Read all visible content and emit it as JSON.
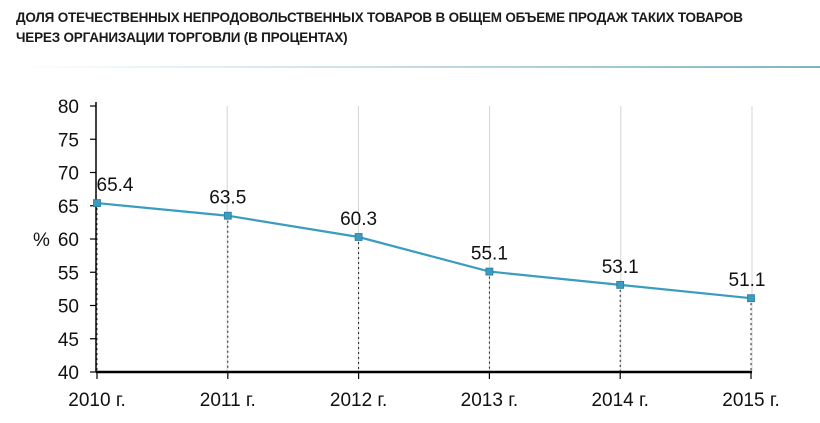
{
  "title": {
    "line1": "ДОЛЯ ОТЕЧЕСТВЕННЫХ НЕПРОДОВОЛЬСТВЕННЫХ ТОВАРОВ В ОБЩЕМ ОБЪЕМЕ ПРОДАЖ ТАКИХ ТОВАРОВ",
    "line2": "ЧЕРЕЗ ОРГАНИЗАЦИИ ТОРГОВЛИ (В ПРОЦЕНТАХ)"
  },
  "colors": {
    "line": "#3a9cbf",
    "grid": "#d4d4d4",
    "axis": "#000000"
  },
  "chart_data": {
    "type": "line",
    "title": "ДОЛЯ ОТЕЧЕСТВЕННЫХ НЕПРОДОВОЛЬСТВЕННЫХ ТОВАРОВ В ОБЩЕМ ОБЪЕМЕ ПРОДАЖ ТАКИХ ТОВАРОВ ЧЕРЕЗ ОРГАНИЗАЦИИ ТОРГОВЛИ (В ПРОЦЕНТАХ)",
    "categories": [
      "2010 г.",
      "2011 г.",
      "2012 г.",
      "2013 г.",
      "2014 г.",
      "2015 г."
    ],
    "values": [
      65.4,
      63.5,
      60.3,
      55.1,
      53.1,
      51.1
    ],
    "value_labels": [
      "65.4",
      "63.5",
      "60.3",
      "55.1",
      "53.1",
      "51.1"
    ],
    "ylabel": "%",
    "xlabel": "",
    "ylim": [
      40,
      80
    ],
    "yticks": [
      40,
      45,
      50,
      55,
      60,
      65,
      70,
      75,
      80
    ],
    "grid": "vertical",
    "drop_lines": true,
    "legend": "none"
  }
}
